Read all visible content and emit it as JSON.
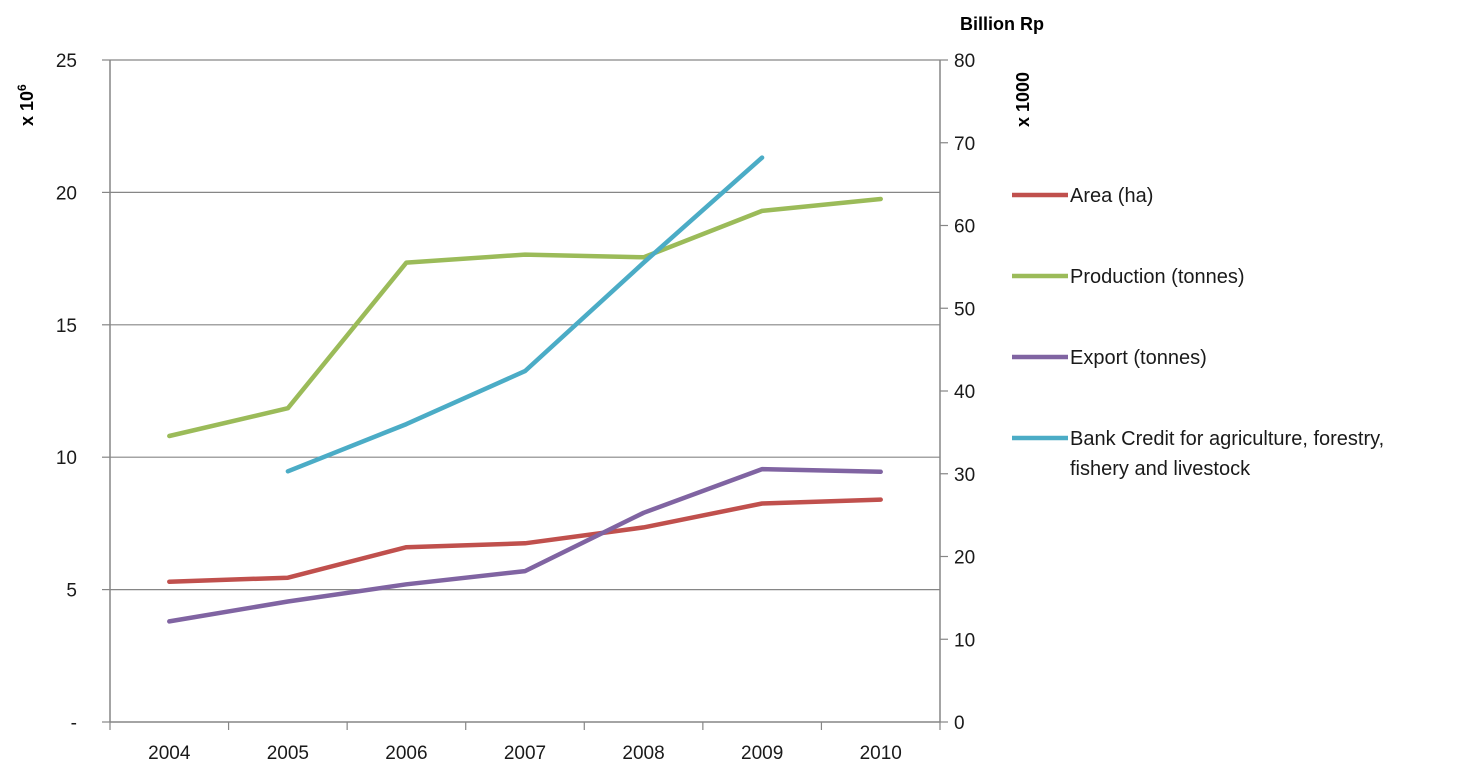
{
  "chart_data": {
    "type": "line",
    "categories": [
      "2004",
      "2005",
      "2006",
      "2007",
      "2008",
      "2009",
      "2010"
    ],
    "y_left": {
      "label": "x 10",
      "label_superscript": "6",
      "ylim": [
        0,
        25
      ],
      "ticks": [
        0,
        5,
        10,
        15,
        20,
        25
      ],
      "tick_labels": [
        "-",
        "5",
        "10",
        "15",
        "20",
        "25"
      ]
    },
    "y_right": {
      "unit_label": "Billion Rp",
      "label": "x 1000",
      "ylim": [
        0,
        80
      ],
      "ticks": [
        0,
        10,
        20,
        30,
        40,
        50,
        60,
        70,
        80
      ],
      "tick_labels": [
        "0",
        "10",
        "20",
        "30",
        "40",
        "50",
        "60",
        "70",
        "80"
      ]
    },
    "grid": true,
    "legend_position": "right",
    "series": [
      {
        "name": "Area (ha)",
        "axis": "left",
        "color": "#c0504d",
        "values": [
          5.3,
          5.45,
          6.6,
          6.75,
          7.35,
          8.25,
          8.4
        ]
      },
      {
        "name": "Production (tonnes)",
        "axis": "left",
        "color": "#9bbb59",
        "values": [
          10.8,
          11.85,
          17.35,
          17.65,
          17.55,
          19.3,
          19.75
        ]
      },
      {
        "name": "Export  (tonnes)",
        "axis": "left",
        "color": "#8064a2",
        "values": [
          3.8,
          4.55,
          5.2,
          5.7,
          7.9,
          9.55,
          9.45
        ]
      },
      {
        "name": "Bank Credit for agriculture, forestry, fishery and livestock",
        "name_lines": [
          "Bank Credit for agriculture, forestry,",
          "fishery and livestock"
        ],
        "axis": "right",
        "color": "#4bacc6",
        "values": [
          null,
          30.3,
          36.0,
          42.4,
          55.5,
          68.2,
          null
        ]
      }
    ]
  }
}
